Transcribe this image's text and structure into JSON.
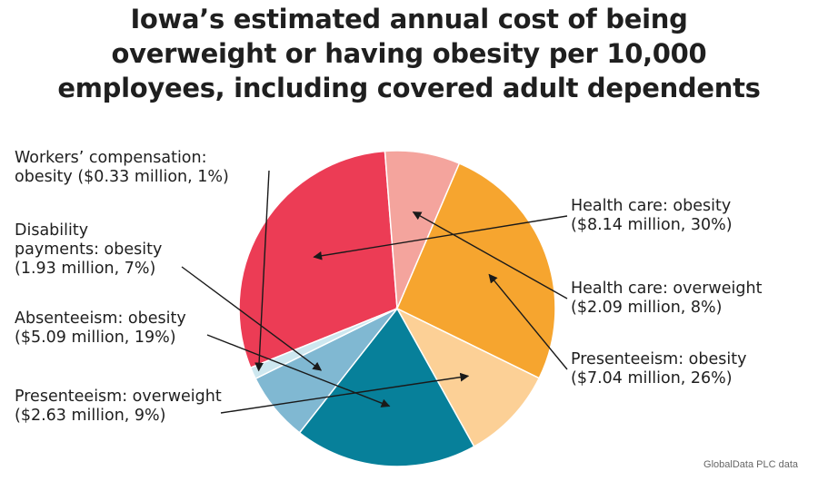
{
  "chart_data": {
    "type": "pie",
    "title_lines": [
      "Iowa’s estimated annual cost of being",
      "overweight or having obesity per 10,000",
      "employees, including covered adult dependents"
    ],
    "categories": [
      "Health care: obesity",
      "Health care: overweight",
      "Presenteeism: obesity",
      "Presenteeism: overweight",
      "Absenteeism: obesity",
      "Disability payments: obesity",
      "Workers’ compensation: obesity"
    ],
    "values_millions": [
      8.14,
      2.09,
      7.04,
      2.63,
      5.09,
      1.93,
      0.33
    ],
    "percents": [
      30,
      8,
      26,
      9,
      19,
      7,
      1
    ],
    "colors": [
      "#ec3c55",
      "#f4a49d",
      "#f6a52f",
      "#fcd096",
      "#07809a",
      "#80b8d2",
      "#cde7ef"
    ],
    "labels": [
      {
        "lines": [
          "Health care: obesity",
          "($8.14 million, 30%)"
        ]
      },
      {
        "lines": [
          "Health care: overweight",
          "($2.09 million, 8%)"
        ]
      },
      {
        "lines": [
          "Presenteeism: obesity",
          "($7.04 million, 26%)"
        ]
      },
      {
        "lines": [
          "Presenteeism: overweight",
          "($2.63 million, 9%)"
        ]
      },
      {
        "lines": [
          "Absenteeism: obesity",
          "($5.09 million, 19%)"
        ]
      },
      {
        "lines": [
          "Disability",
          "payments: obesity",
          "(1.93 million, 7%)"
        ]
      },
      {
        "lines": [
          "Workers’ compensation:",
          "obesity ($0.33 million, 1%)"
        ]
      }
    ],
    "source": "GlobalData PLC data",
    "legend": "none"
  }
}
